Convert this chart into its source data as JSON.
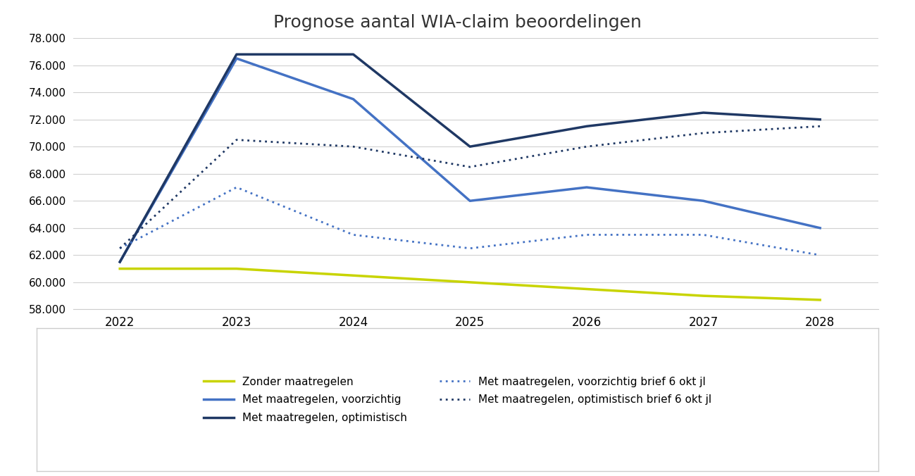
{
  "title": "Prognose aantal WIA-claim beoordelingen",
  "x": [
    2022,
    2023,
    2024,
    2025,
    2026,
    2027,
    2028
  ],
  "zonder_maatregelen": [
    61000,
    61000,
    60500,
    60000,
    59500,
    59000,
    58700
  ],
  "voorzichtig": [
    61500,
    76500,
    73500,
    66000,
    67000,
    66000,
    64000
  ],
  "optimistisch": [
    61500,
    76800,
    76800,
    70000,
    71500,
    72500,
    72000
  ],
  "voorzichtig_okt": [
    62500,
    67000,
    63500,
    62500,
    63500,
    63500,
    62000
  ],
  "optimistisch_okt": [
    62500,
    70500,
    70000,
    68500,
    70000,
    71000,
    71500
  ],
  "color_yellow": "#c8d400",
  "color_light_blue": "#4472c4",
  "color_dark_navy": "#1f3864",
  "ylim_min": 58000,
  "ylim_max": 78000,
  "yticks": [
    58000,
    60000,
    62000,
    64000,
    66000,
    68000,
    70000,
    72000,
    74000,
    76000,
    78000
  ],
  "legend_zonder": "Zonder maatregelen",
  "legend_voorzichtig": "Met maatregelen, voorzichtig",
  "legend_optimistisch": "Met maatregelen, optimistisch",
  "legend_voorzichtig_okt": "Met maatregelen, voorzichtig brief 6 okt jl",
  "legend_optimistisch_okt": "Met maatregelen, optimistisch brief 6 okt jl",
  "background_color": "#ffffff",
  "grid_color": "#d0d0d0"
}
